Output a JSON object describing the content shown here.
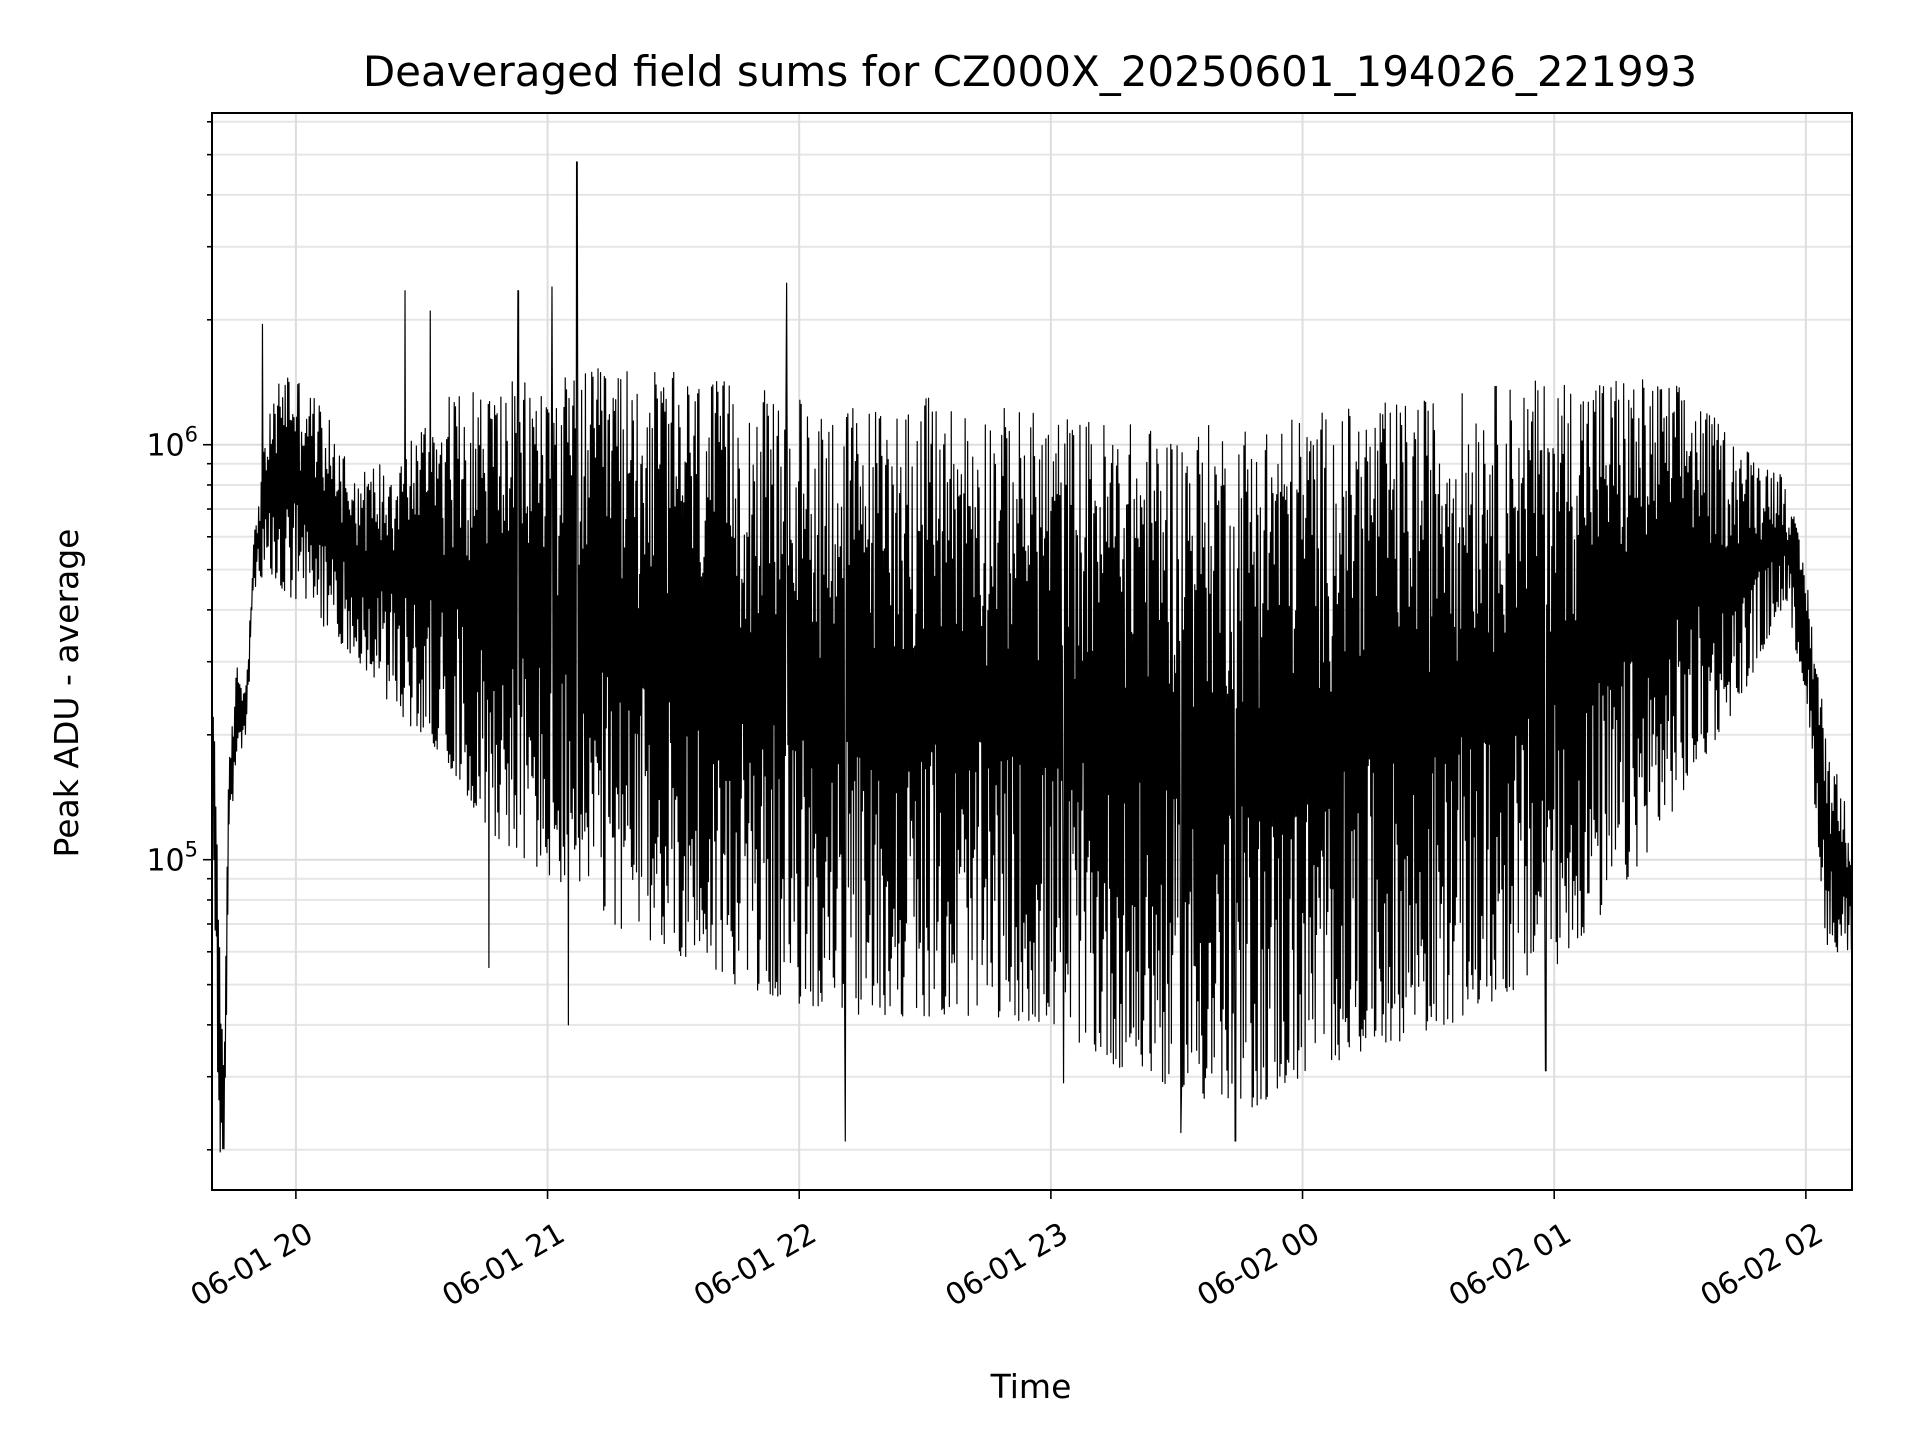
{
  "chart_data": {
    "type": "line",
    "title": "Deaveraged field sums for CZ000X_20250601_194026_221993",
    "xlabel": "Time",
    "ylabel": "Peak ADU - average",
    "yscale": "log",
    "ylim": [
      16000,
      6300000
    ],
    "xlim_start": "2025-06-01 19:40",
    "xlim_end": "2025-06-02 02:11",
    "grid": true,
    "x_ticks": [
      "2025-06-01 20:00",
      "2025-06-01 21:00",
      "2025-06-01 22:00",
      "2025-06-01 23:00",
      "2025-06-02 00:00",
      "2025-06-02 01:00",
      "2025-06-02 02:00"
    ],
    "x_tick_labels": [
      "06-01 20",
      "06-01 21",
      "06-01 22",
      "06-01 23",
      "06-02 00",
      "06-02 01",
      "06-02 02"
    ],
    "y_ticks": [
      100000,
      1000000
    ],
    "y_tick_labels": [
      {
        "base": "10",
        "exp": "5"
      },
      {
        "base": "10",
        "exp": "6"
      }
    ],
    "series": [
      {
        "color": "#000000",
        "envelope": [
          {
            "t": "2025-06-01 19:40",
            "low": 230000,
            "high": 260000
          },
          {
            "t": "2025-06-01 19:41",
            "low": 30000,
            "high": 200000
          },
          {
            "t": "2025-06-01 19:42",
            "low": 19000,
            "high": 50000
          },
          {
            "t": "2025-06-01 19:43",
            "low": 20000,
            "high": 40000
          },
          {
            "t": "2025-06-01 19:44",
            "low": 100000,
            "high": 170000
          },
          {
            "t": "2025-06-01 19:46",
            "low": 190000,
            "high": 300000
          },
          {
            "t": "2025-06-01 19:48",
            "low": 180000,
            "high": 260000
          },
          {
            "t": "2025-06-01 19:50",
            "low": 450000,
            "high": 600000
          },
          {
            "t": "2025-06-01 19:53",
            "low": 480000,
            "high": 1100000
          },
          {
            "t": "2025-06-01 19:57",
            "low": 430000,
            "high": 1600000
          },
          {
            "t": "2025-06-01 20:05",
            "low": 380000,
            "high": 1300000
          },
          {
            "t": "2025-06-01 20:15",
            "low": 300000,
            "high": 850000
          },
          {
            "t": "2025-06-01 20:25",
            "low": 220000,
            "high": 1000000
          },
          {
            "t": "2025-06-01 20:35",
            "low": 180000,
            "high": 1300000
          },
          {
            "t": "2025-06-01 20:45",
            "low": 120000,
            "high": 1400000
          },
          {
            "t": "2025-06-01 21:00",
            "low": 90000,
            "high": 1450000
          },
          {
            "t": "2025-06-01 21:15",
            "low": 70000,
            "high": 1550000
          },
          {
            "t": "2025-06-01 21:30",
            "low": 60000,
            "high": 1500000
          },
          {
            "t": "2025-06-01 21:45",
            "low": 50000,
            "high": 1400000
          },
          {
            "t": "2025-06-01 22:00",
            "low": 45000,
            "high": 1300000
          },
          {
            "t": "2025-06-01 22:15",
            "low": 42000,
            "high": 1250000
          },
          {
            "t": "2025-06-01 22:30",
            "low": 42000,
            "high": 1300000
          },
          {
            "t": "2025-06-01 22:45",
            "low": 42000,
            "high": 1250000
          },
          {
            "t": "2025-06-01 23:00",
            "low": 40000,
            "high": 1200000
          },
          {
            "t": "2025-06-01 23:15",
            "low": 32000,
            "high": 1150000
          },
          {
            "t": "2025-06-01 23:30",
            "low": 28000,
            "high": 1100000
          },
          {
            "t": "2025-06-01 23:45",
            "low": 24000,
            "high": 1150000
          },
          {
            "t": "2025-06-02 00:00",
            "low": 30000,
            "high": 1200000
          },
          {
            "t": "2025-06-02 00:15",
            "low": 35000,
            "high": 1250000
          },
          {
            "t": "2025-06-02 00:30",
            "low": 38000,
            "high": 1300000
          },
          {
            "t": "2025-06-02 00:45",
            "low": 45000,
            "high": 1400000
          },
          {
            "t": "2025-06-02 01:00",
            "low": 55000,
            "high": 1450000
          },
          {
            "t": "2025-06-02 01:15",
            "low": 80000,
            "high": 1500000
          },
          {
            "t": "2025-06-02 01:30",
            "low": 140000,
            "high": 1400000
          },
          {
            "t": "2025-06-02 01:45",
            "low": 250000,
            "high": 1000000
          },
          {
            "t": "2025-06-02 01:55",
            "low": 420000,
            "high": 850000
          },
          {
            "t": "2025-06-02 02:00",
            "low": 250000,
            "high": 500000
          },
          {
            "t": "2025-06-02 02:05",
            "low": 60000,
            "high": 200000
          },
          {
            "t": "2025-06-02 02:11",
            "low": 60000,
            "high": 120000
          }
        ],
        "spikes": [
          {
            "t": "2025-06-01 19:52",
            "value": 1950000
          },
          {
            "t": "2025-06-01 20:26",
            "value": 2350000
          },
          {
            "t": "2025-06-01 20:32",
            "value": 2100000
          },
          {
            "t": "2025-06-01 20:53",
            "value": 2350000
          },
          {
            "t": "2025-06-01 21:01",
            "value": 2400000
          },
          {
            "t": "2025-06-01 21:07",
            "value": 4800000
          },
          {
            "t": "2025-06-01 21:57",
            "value": 2450000
          },
          {
            "t": "2025-06-01 20:46",
            "value": 55000
          },
          {
            "t": "2025-06-01 21:05",
            "value": 40000
          },
          {
            "t": "2025-06-01 22:11",
            "value": 21000
          },
          {
            "t": "2025-06-01 23:03",
            "value": 29000
          },
          {
            "t": "2025-06-01 23:31",
            "value": 22000
          },
          {
            "t": "2025-06-01 23:44",
            "value": 21000
          },
          {
            "t": "2025-06-02 00:58",
            "value": 31000
          }
        ]
      }
    ]
  }
}
